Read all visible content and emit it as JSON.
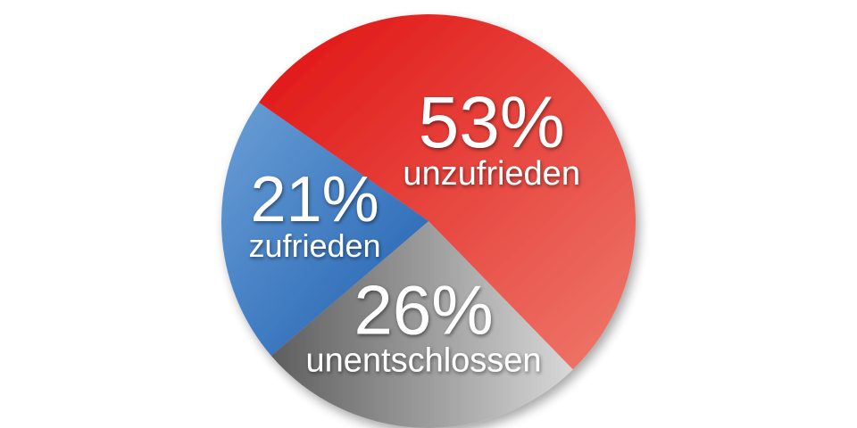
{
  "chart_data": {
    "type": "pie",
    "title": "",
    "slices": [
      {
        "label": "unzufrieden",
        "value": 53,
        "value_label": "53%",
        "color": "#e4272b"
      },
      {
        "label": "unentschlossen",
        "value": 26,
        "value_label": "26%",
        "color": "#8a8a8a"
      },
      {
        "label": "zufrieden",
        "value": 21,
        "value_label": "21%",
        "color": "#3a7cc2"
      }
    ],
    "legend": "none"
  }
}
